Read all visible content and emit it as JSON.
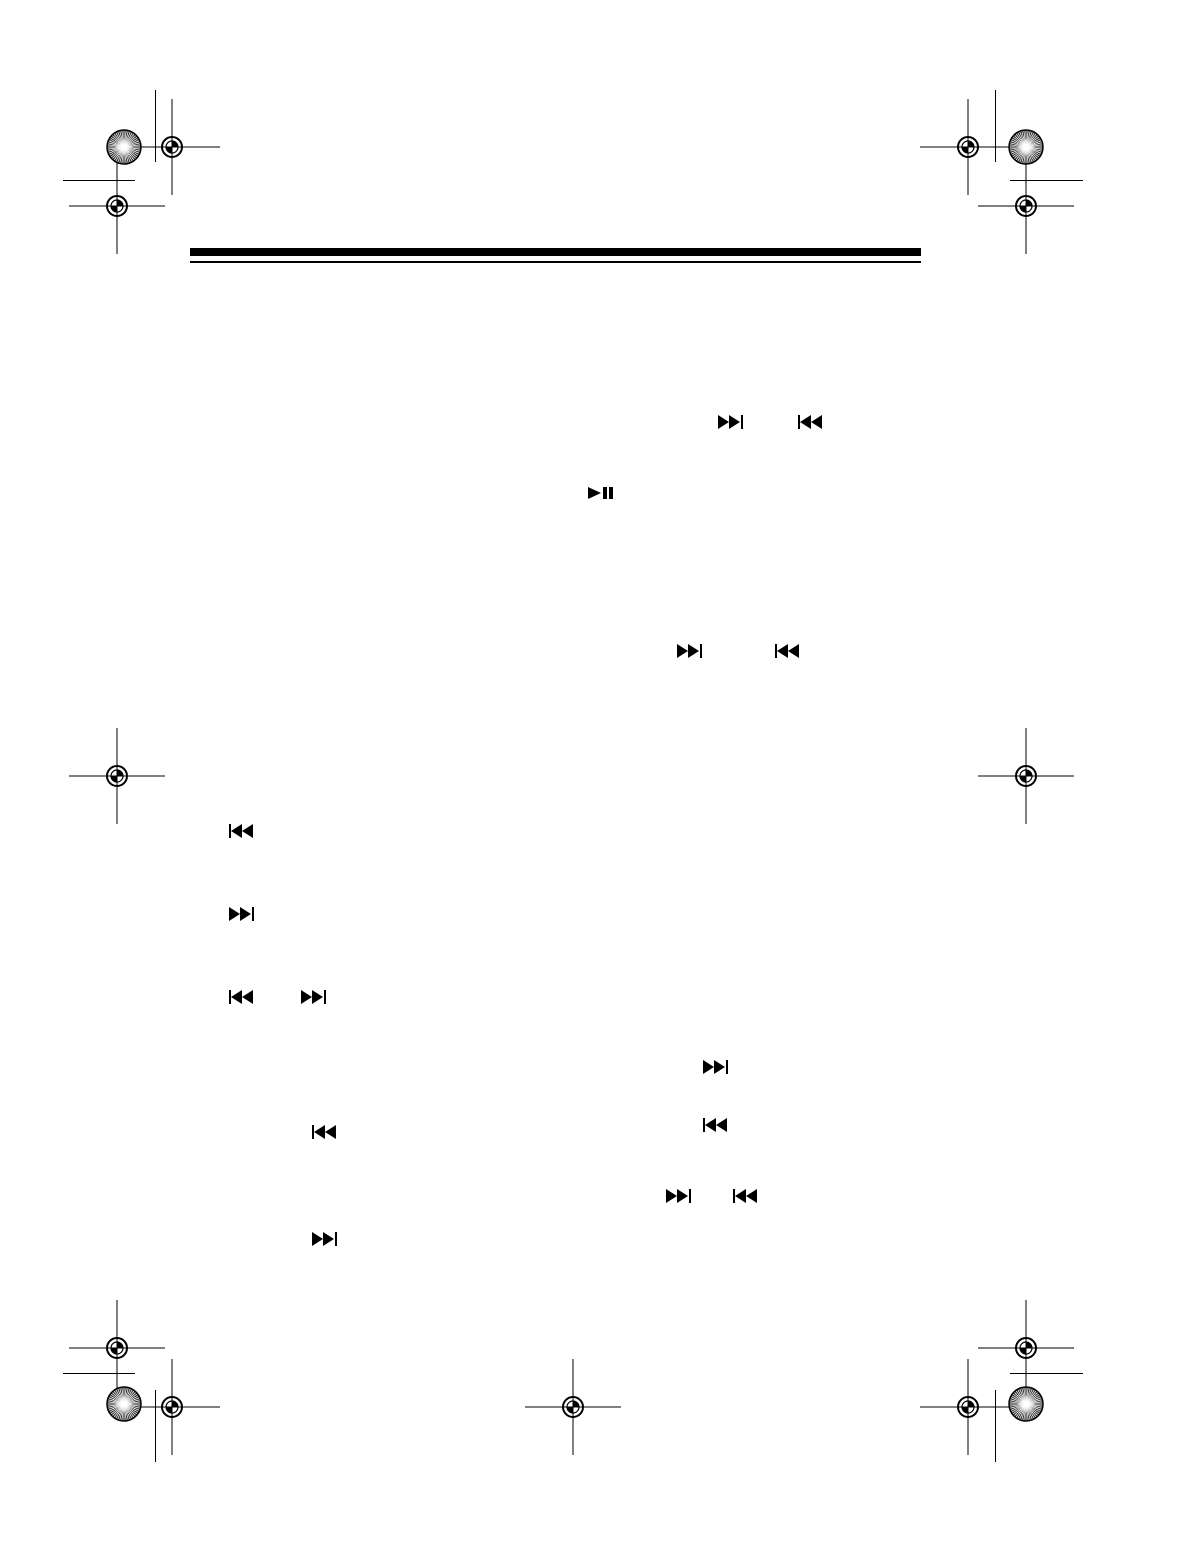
{
  "colors": {
    "ink": "#000000",
    "paper": "#ffffff"
  },
  "header": {
    "rule": "double-rule"
  },
  "icons": [
    {
      "name": "skip-forward-icon"
    },
    {
      "name": "skip-back-icon"
    },
    {
      "name": "play-pause-icon"
    },
    {
      "name": "skip-forward-icon"
    },
    {
      "name": "skip-back-icon"
    },
    {
      "name": "skip-back-icon"
    },
    {
      "name": "skip-forward-icon"
    },
    {
      "name": "skip-back-icon"
    },
    {
      "name": "skip-forward-icon"
    },
    {
      "name": "skip-back-icon"
    },
    {
      "name": "skip-forward-icon"
    },
    {
      "name": "skip-forward-icon"
    },
    {
      "name": "skip-back-icon"
    },
    {
      "name": "skip-forward-icon"
    },
    {
      "name": "skip-back-icon"
    }
  ],
  "printer_marks": {
    "registration": "crosshair-circle",
    "color_bar": "starburst-circle"
  }
}
